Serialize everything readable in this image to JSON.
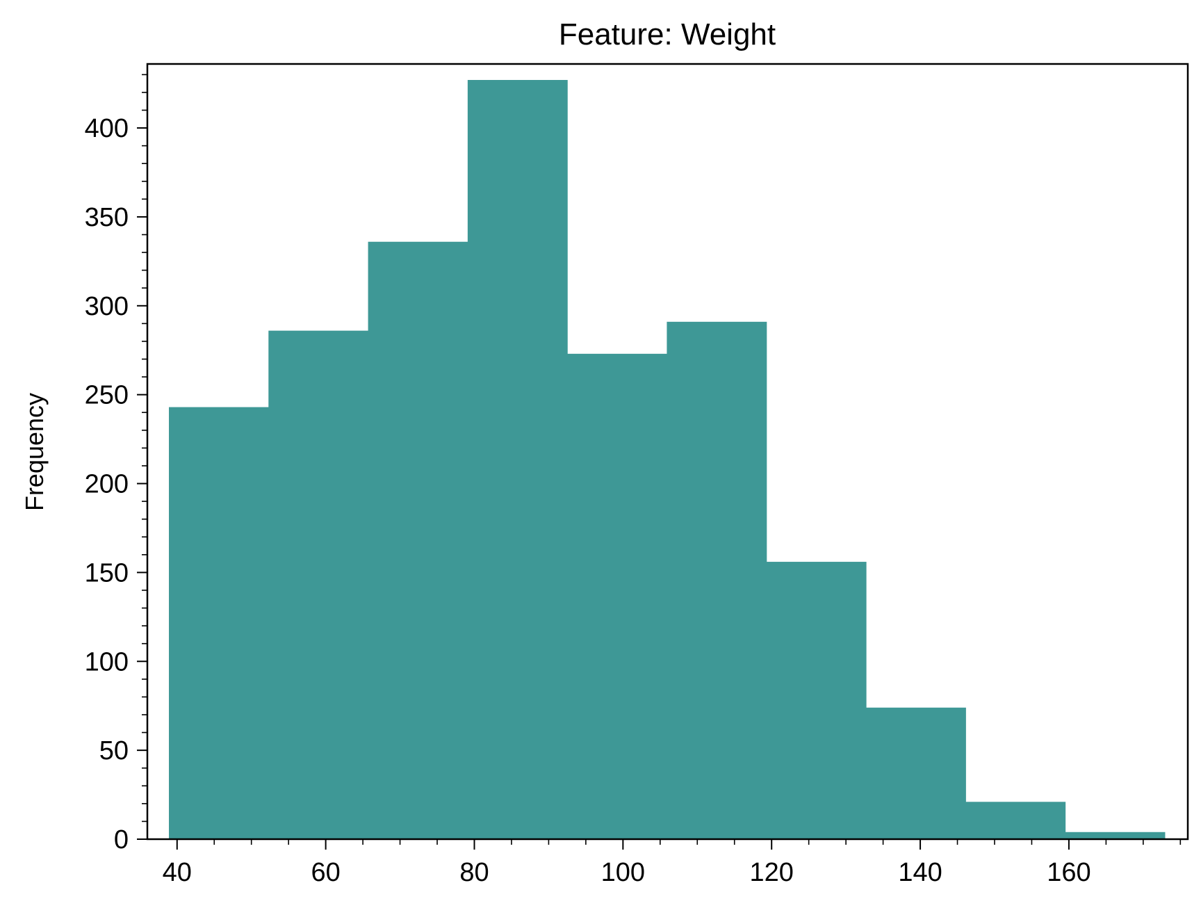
{
  "chart_data": {
    "type": "bar",
    "title": "Feature: Weight",
    "xlabel": "",
    "ylabel": "Frequency",
    "bin_edges": [
      38.9,
      52.3,
      65.7,
      79.1,
      92.5,
      105.9,
      119.3,
      132.7,
      146.1,
      159.5,
      172.9
    ],
    "values": [
      243,
      286,
      336,
      427,
      273,
      291,
      156,
      74,
      21,
      4
    ],
    "xlim": [
      36,
      176
    ],
    "ylim": [
      0,
      436
    ],
    "x_ticks": [
      40,
      60,
      80,
      100,
      120,
      140,
      160
    ],
    "x_tick_labels": [
      "40",
      "60",
      "80",
      "100",
      "120",
      "140",
      "160"
    ],
    "y_ticks": [
      0,
      50,
      100,
      150,
      200,
      250,
      300,
      350,
      400
    ],
    "y_tick_labels": [
      "0",
      "50",
      "100",
      "150",
      "200",
      "250",
      "300",
      "350",
      "400"
    ],
    "x_minor_step": 5,
    "y_minor_step": 10,
    "grid": false,
    "legend": "none",
    "colors": {
      "bar": "#3e9896",
      "axis": "#000000",
      "background": "#ffffff"
    }
  }
}
